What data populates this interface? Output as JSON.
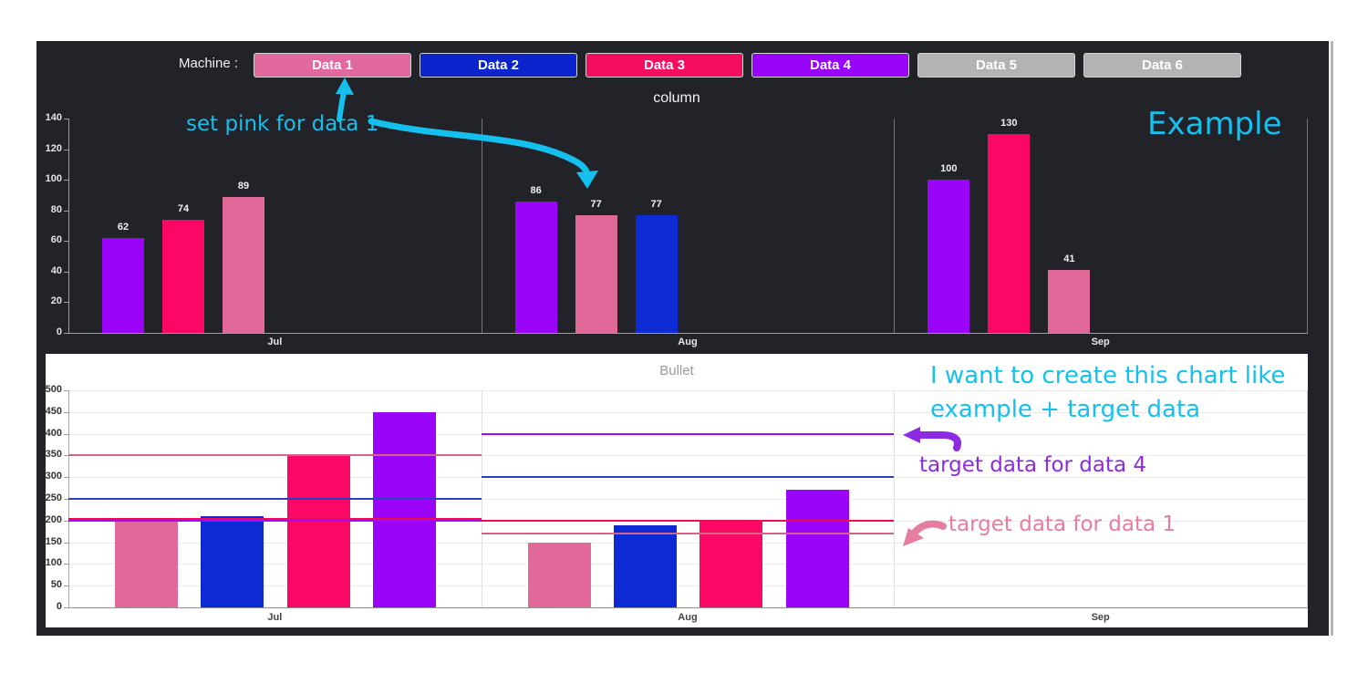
{
  "window": {
    "panel_bg": "#212329"
  },
  "header": {
    "machine_label": "Machine :",
    "buttons": [
      {
        "label": "Data 1",
        "color": "#e2699e"
      },
      {
        "label": "Data 2",
        "color": "#0b24cd"
      },
      {
        "label": "Data 3",
        "color": "#f50d62"
      },
      {
        "label": "Data 4",
        "color": "#9704f7"
      },
      {
        "label": "Data 5",
        "color": "#b3b3b3"
      },
      {
        "label": "Data 6",
        "color": "#b3b3b3"
      }
    ]
  },
  "series_colors": {
    "Data 1": "#e0699a",
    "Data 2": "#0d2ad4",
    "Data 3": "#fb0766",
    "Data 4": "#9a05fa"
  },
  "target_colors": {
    "Data 1": "#d4648c",
    "Data 2": "#2b3fc0",
    "Data 3": "#f00a50",
    "Data 4": "#a808f0"
  },
  "chart_data": [
    {
      "type": "bar",
      "title": "column",
      "categories": [
        "Jul",
        "Aug",
        "Sep"
      ],
      "xlabel": "",
      "ylabel": "",
      "ylim": [
        0,
        140
      ],
      "ytick_step": 20,
      "grid": false,
      "legend_position": "none",
      "groups": [
        {
          "category": "Jul",
          "bars": [
            {
              "series": "Data 4",
              "value": 62
            },
            {
              "series": "Data 3",
              "value": 74
            },
            {
              "series": "Data 1",
              "value": 89
            }
          ]
        },
        {
          "category": "Aug",
          "bars": [
            {
              "series": "Data 4",
              "value": 86
            },
            {
              "series": "Data 1",
              "value": 77
            },
            {
              "series": "Data 2",
              "value": 77
            }
          ]
        },
        {
          "category": "Sep",
          "bars": [
            {
              "series": "Data 4",
              "value": 100
            },
            {
              "series": "Data 3",
              "value": 130
            },
            {
              "series": "Data 1",
              "value": 41
            }
          ]
        }
      ]
    },
    {
      "type": "bar",
      "title": "Bullet",
      "categories": [
        "Jul",
        "Aug",
        "Sep"
      ],
      "xlabel": "",
      "ylabel": "",
      "ylim": [
        0,
        500
      ],
      "ytick_step": 50,
      "grid": true,
      "legend_position": "none",
      "groups": [
        {
          "category": "Jul",
          "bars": [
            {
              "series": "Data 1",
              "value": 200
            },
            {
              "series": "Data 2",
              "value": 210
            },
            {
              "series": "Data 3",
              "value": 350
            },
            {
              "series": "Data 4",
              "value": 450
            }
          ],
          "targets": [
            {
              "series": "Data 1",
              "value": 350
            },
            {
              "series": "Data 2",
              "value": 250
            },
            {
              "series": "Data 4",
              "value": 200
            },
            {
              "series": "Data 3",
              "value": 200
            }
          ]
        },
        {
          "category": "Aug",
          "bars": [
            {
              "series": "Data 1",
              "value": 150
            },
            {
              "series": "Data 2",
              "value": 190
            },
            {
              "series": "Data 3",
              "value": 200
            },
            {
              "series": "Data 4",
              "value": 270
            }
          ],
          "targets": [
            {
              "series": "Data 4",
              "value": 400
            },
            {
              "series": "Data 2",
              "value": 300
            },
            {
              "series": "Data 3",
              "value": 200
            },
            {
              "series": "Data 1",
              "value": 170
            }
          ]
        },
        {
          "category": "Sep",
          "bars": [],
          "targets": []
        }
      ]
    }
  ],
  "annotations": {
    "set_pink_text": "set pink for data 1",
    "example_text": "Example",
    "want_text_line1": "I want to create this chart like",
    "want_text_line2": "example + target data",
    "target4_text": "target data for data 4",
    "target1_text": "target data for data 1",
    "colors": {
      "cyan": "#15bfee",
      "purple": "#8d2be2",
      "pink": "#e57da3"
    }
  }
}
